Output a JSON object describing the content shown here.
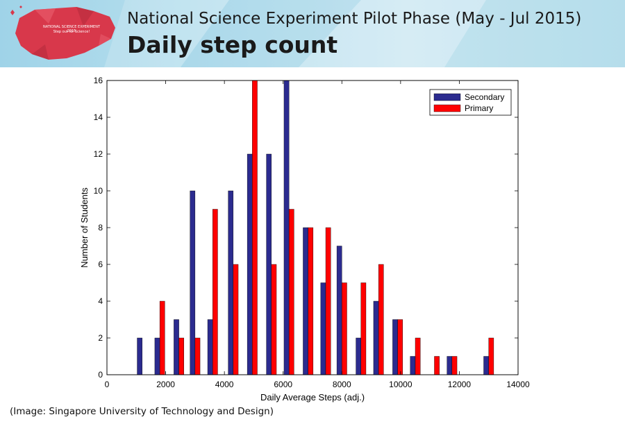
{
  "banner": {
    "title": "National Science Experiment Pilot Phase (May - Jul 2015)",
    "subtitle": "Daily step count",
    "logo_text_line1": "NATIONAL SCIENCE EXPERIMENT 2015",
    "logo_text_line2": "Step out for Science!",
    "colors": {
      "banner_bg": "#b9e0ee",
      "logo_red": "#d8384b"
    }
  },
  "caption": "(Image: Singapore University of Technology and Design)",
  "chart_data": {
    "type": "bar",
    "xlabel": "Daily Average Steps (adj.)",
    "ylabel": "Number of Students",
    "xlim": [
      0,
      14000
    ],
    "ylim": [
      0,
      16
    ],
    "xticks": [
      0,
      2000,
      4000,
      6000,
      8000,
      10000,
      12000,
      14000
    ],
    "yticks": [
      0,
      2,
      4,
      6,
      8,
      10,
      12,
      14,
      16
    ],
    "grid": false,
    "legend_position": "top-right",
    "series": [
      {
        "name": "Secondary",
        "color": "#2b2b8f",
        "x": [
          1200,
          1800,
          2450,
          3000,
          3600,
          4300,
          4950,
          5600,
          6200,
          6850,
          7450,
          8000,
          8650,
          9250,
          9900,
          10500,
          11150,
          11750,
          12400,
          13000
        ],
        "values": [
          2,
          2,
          3,
          10,
          3,
          10,
          12,
          12,
          16,
          8,
          5,
          7,
          2,
          4,
          3,
          1,
          0,
          1,
          0,
          1
        ]
      },
      {
        "name": "Primary",
        "color": "#ff0000",
        "x": [
          1200,
          1800,
          2450,
          3000,
          3600,
          4300,
          4950,
          5600,
          6200,
          6850,
          7450,
          8000,
          8650,
          9250,
          9900,
          10500,
          11150,
          11750,
          12400,
          13000
        ],
        "values": [
          0,
          4,
          2,
          2,
          9,
          6,
          16,
          6,
          9,
          8,
          8,
          5,
          5,
          6,
          3,
          2,
          1,
          1,
          0,
          2
        ]
      }
    ]
  }
}
